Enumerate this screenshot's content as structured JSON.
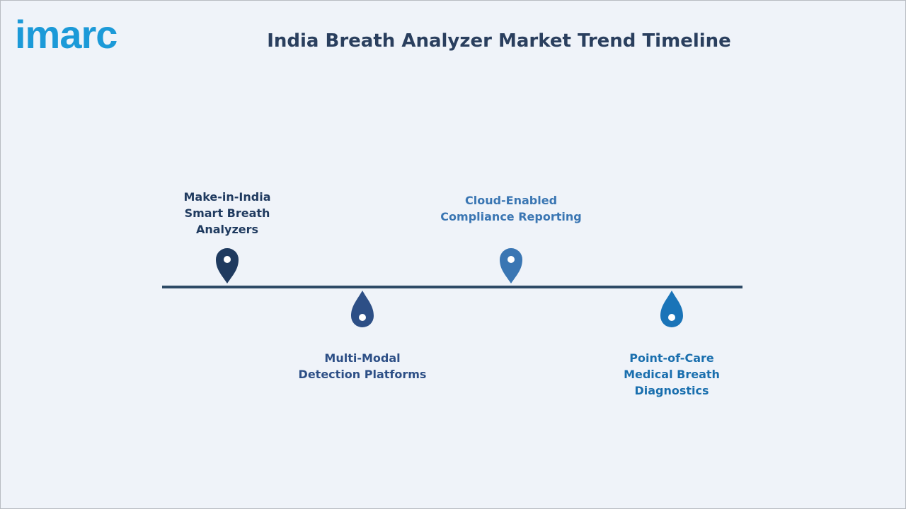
{
  "logo": "imarc",
  "title": "India Breath Analyzer Market Trend Timeline",
  "items": [
    {
      "label": "Make-in-India Smart Breath Analyzers"
    },
    {
      "label": "Multi-Modal Detection Platforms"
    },
    {
      "label": "Cloud-Enabled Compliance Reporting"
    },
    {
      "label": "Point-of-Care Medical Breath Diagnostics"
    }
  ]
}
